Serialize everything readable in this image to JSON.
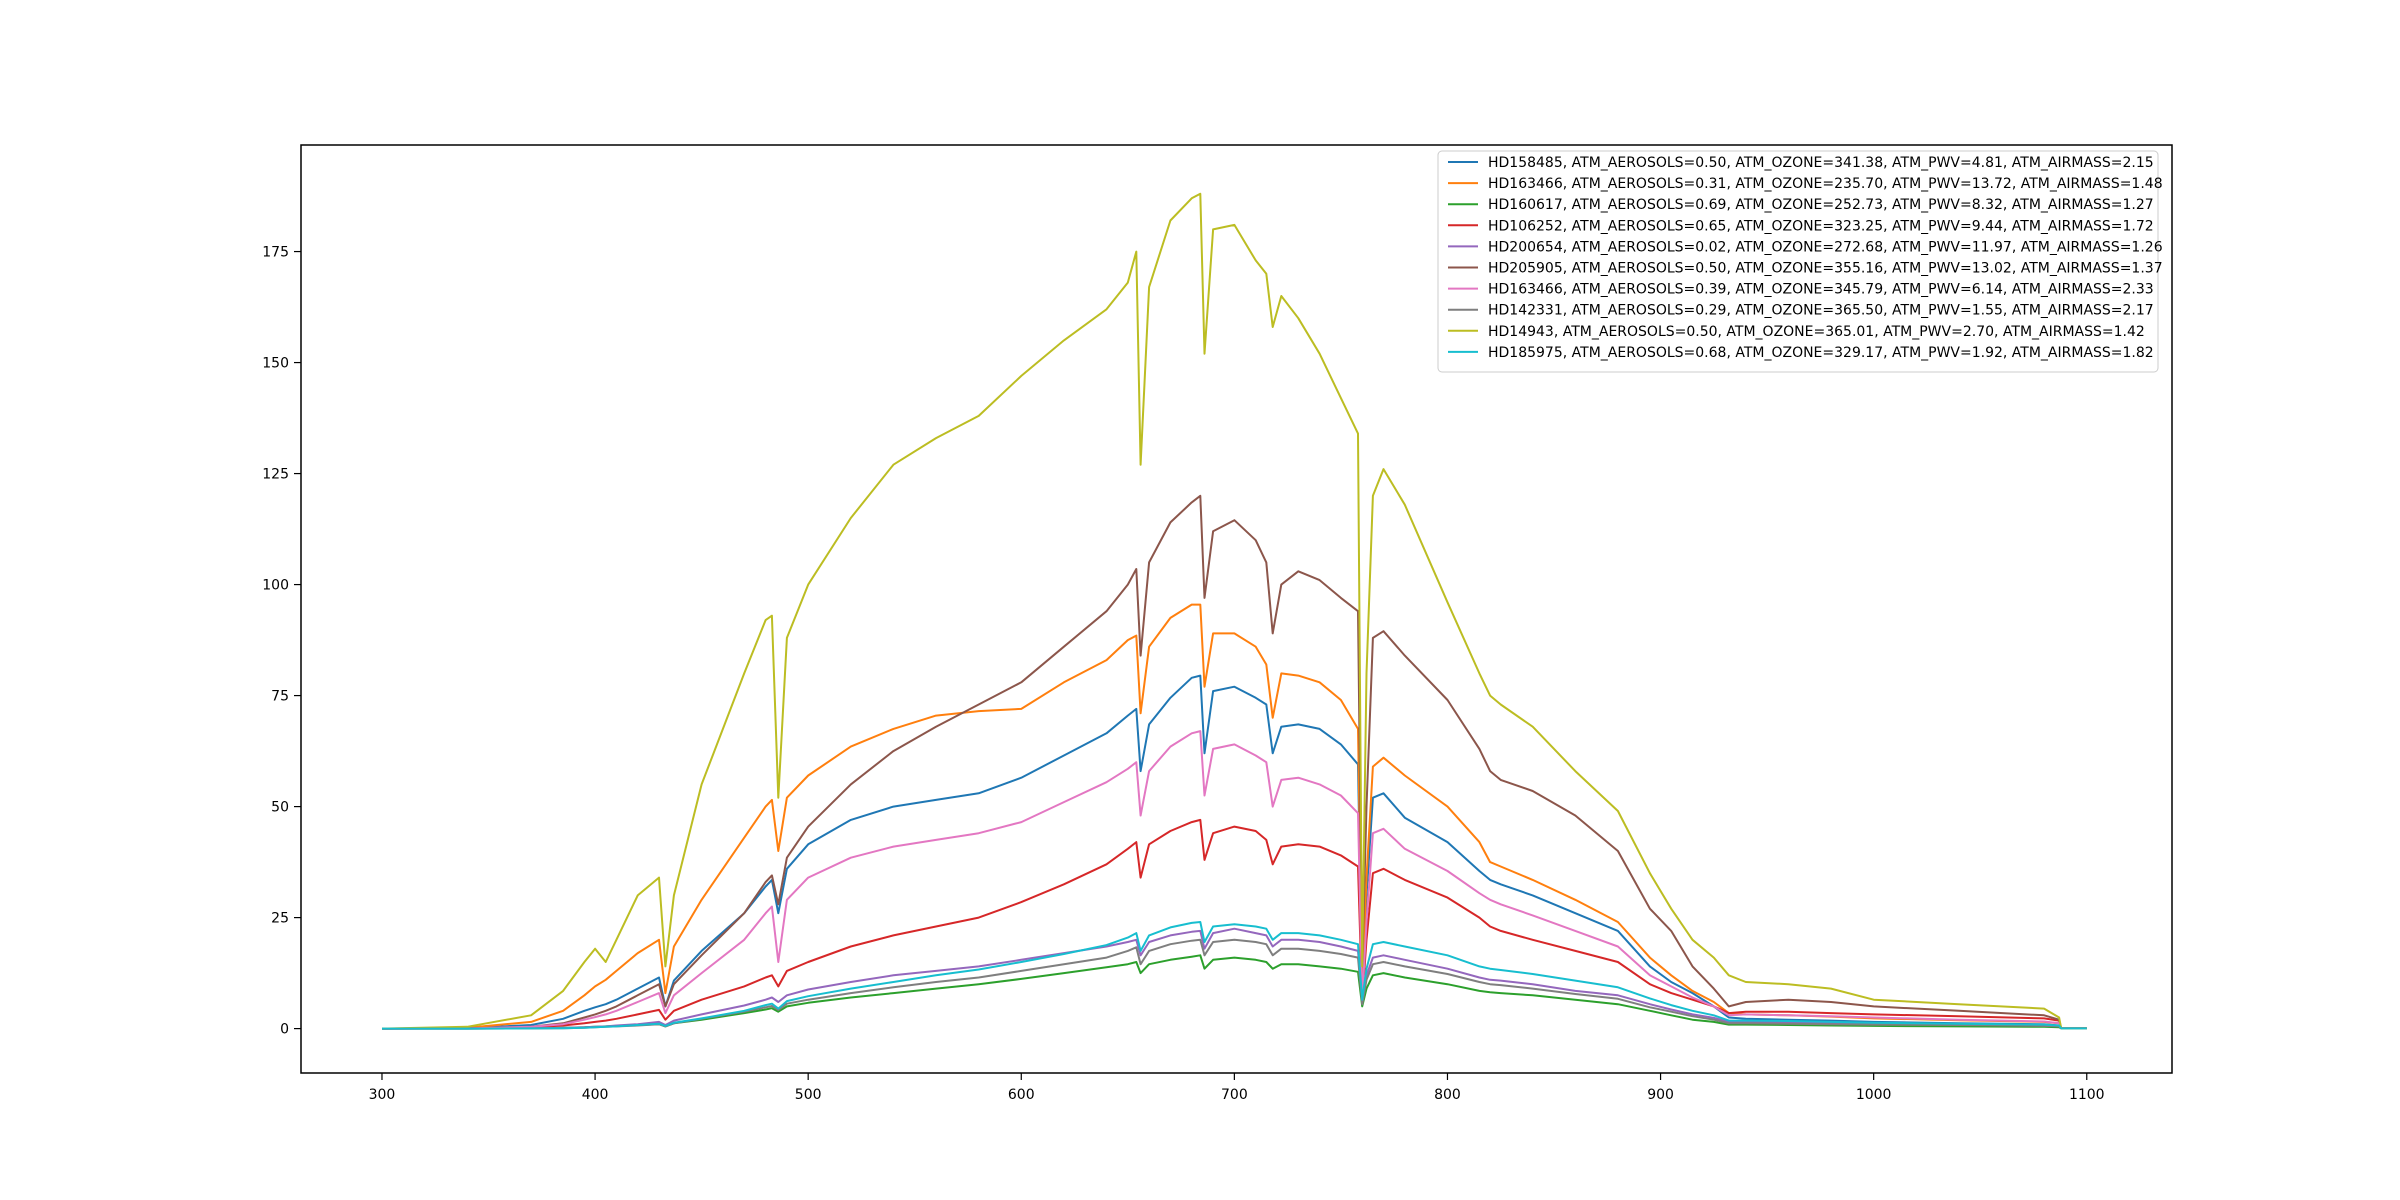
{
  "chart_data": {
    "type": "line",
    "title": "",
    "xlabel": "",
    "ylabel": "",
    "xlim": [
      262,
      1140
    ],
    "ylim": [
      -10,
      199
    ],
    "xticks": [
      300,
      400,
      500,
      600,
      700,
      800,
      900,
      1000,
      1100
    ],
    "yticks": [
      0,
      25,
      50,
      75,
      100,
      125,
      150,
      175
    ],
    "grid": false,
    "legend_position": "top-right",
    "x": [
      300,
      340,
      370,
      385,
      395,
      400,
      405,
      410,
      420,
      430,
      433,
      437,
      450,
      470,
      480,
      483,
      486,
      490,
      500,
      520,
      540,
      560,
      580,
      600,
      620,
      640,
      650,
      654,
      656,
      660,
      670,
      680,
      684,
      686,
      690,
      700,
      710,
      715,
      718,
      722,
      730,
      740,
      750,
      758,
      760,
      762,
      765,
      770,
      780,
      800,
      815,
      820,
      825,
      840,
      860,
      880,
      895,
      905,
      915,
      925,
      932,
      940,
      960,
      980,
      1000,
      1040,
      1080,
      1087,
      1088,
      1100
    ],
    "series": [
      {
        "name": "HD158485, ATM_AEROSOLS=0.50, ATM_OZONE=341.38, ATM_PWV=4.81, ATM_AIRMASS=2.15",
        "color": "#1f77b4",
        "values": [
          0,
          0.1,
          0.8,
          2.2,
          4.0,
          4.8,
          5.5,
          6.5,
          9.0,
          11.5,
          5.0,
          10.8,
          17.5,
          26.0,
          32.0,
          33.5,
          26.0,
          36.0,
          41.5,
          47.0,
          50.0,
          51.5,
          53.0,
          56.5,
          61.5,
          66.5,
          70.5,
          72.0,
          58.0,
          68.5,
          74.5,
          79.0,
          79.5,
          62.0,
          76.0,
          77.0,
          74.5,
          73.0,
          62.0,
          68.0,
          68.5,
          67.5,
          64.0,
          59.5,
          8.0,
          30.0,
          52.0,
          53.0,
          47.5,
          42.0,
          35.5,
          33.5,
          32.5,
          30.0,
          26.0,
          22.0,
          14.0,
          10.5,
          8.0,
          5.0,
          2.5,
          2.2,
          2.0,
          1.8,
          1.5,
          1.2,
          1.0,
          0.7,
          0.05,
          0.05
        ]
      },
      {
        "name": "HD163466, ATM_AEROSOLS=0.31, ATM_OZONE=235.70, ATM_PWV=13.72, ATM_AIRMASS=1.48",
        "color": "#ff7f0e",
        "values": [
          0,
          0.2,
          1.5,
          4.0,
          7.5,
          9.5,
          11.0,
          13.0,
          17.0,
          20.0,
          8.0,
          18.5,
          29.0,
          43.0,
          50.0,
          51.5,
          40.0,
          52.0,
          57.0,
          63.5,
          67.5,
          70.5,
          71.5,
          72.0,
          78.0,
          83.0,
          87.5,
          88.5,
          71.0,
          86.0,
          92.5,
          95.5,
          95.5,
          77.0,
          89.0,
          89.0,
          86.0,
          82.0,
          70.0,
          80.0,
          79.5,
          78.0,
          74.0,
          67.5,
          10.0,
          34.0,
          59.0,
          61.0,
          57.0,
          50.0,
          42.0,
          37.5,
          36.5,
          33.5,
          29.0,
          24.0,
          16.0,
          12.0,
          8.5,
          6.0,
          3.5,
          3.2,
          3.0,
          2.7,
          2.3,
          1.9,
          1.5,
          1.2,
          0.05,
          0.05
        ]
      },
      {
        "name": "HD160617, ATM_AEROSOLS=0.69, ATM_OZONE=252.73, ATM_PWV=8.32, ATM_AIRMASS=1.27",
        "color": "#2ca02c",
        "values": [
          0,
          0,
          0.1,
          0.2,
          0.3,
          0.4,
          0.5,
          0.6,
          0.8,
          1.0,
          0.5,
          1.2,
          2.0,
          3.5,
          4.3,
          4.6,
          3.8,
          5.0,
          5.8,
          7.0,
          8.0,
          9.0,
          10.0,
          11.2,
          12.5,
          13.8,
          14.5,
          15.0,
          12.5,
          14.5,
          15.5,
          16.2,
          16.5,
          13.5,
          15.5,
          16.0,
          15.5,
          15.0,
          13.5,
          14.5,
          14.5,
          14.0,
          13.5,
          12.8,
          5.0,
          9.0,
          12.0,
          12.5,
          11.5,
          10.0,
          8.5,
          8.2,
          8.0,
          7.5,
          6.5,
          5.5,
          4.0,
          3.0,
          2.0,
          1.5,
          0.9,
          0.9,
          0.8,
          0.7,
          0.6,
          0.5,
          0.4,
          0.3,
          0.05,
          0.05
        ]
      },
      {
        "name": "HD106252, ATM_AEROSOLS=0.65, ATM_OZONE=323.25, ATM_PWV=9.44, ATM_AIRMASS=1.72",
        "color": "#d62728",
        "values": [
          0,
          0.05,
          0.3,
          0.7,
          1.2,
          1.5,
          1.8,
          2.2,
          3.2,
          4.2,
          2.0,
          4.0,
          6.5,
          9.5,
          11.5,
          12.0,
          9.5,
          13.0,
          15.0,
          18.5,
          21.0,
          23.0,
          25.0,
          28.5,
          32.5,
          37.0,
          40.5,
          42.0,
          34.0,
          41.5,
          44.5,
          46.5,
          47.0,
          38.0,
          44.0,
          45.5,
          44.5,
          42.5,
          37.0,
          41.0,
          41.5,
          41.0,
          39.0,
          36.5,
          6.0,
          20.0,
          35.0,
          36.0,
          33.5,
          29.5,
          25.0,
          23.0,
          22.0,
          20.0,
          17.5,
          15.0,
          10.0,
          8.0,
          6.5,
          5.0,
          3.5,
          3.8,
          3.8,
          3.5,
          3.2,
          2.8,
          2.3,
          1.8,
          0.05,
          0.05
        ]
      },
      {
        "name": "HD200654, ATM_AEROSOLS=0.02, ATM_OZONE=272.68, ATM_PWV=11.97, ATM_AIRMASS=1.26",
        "color": "#9467bd",
        "values": [
          0,
          0,
          0.05,
          0.15,
          0.3,
          0.4,
          0.5,
          0.7,
          1.0,
          1.5,
          0.8,
          1.8,
          3.2,
          5.2,
          6.5,
          7.0,
          6.0,
          7.5,
          8.8,
          10.5,
          12.0,
          13.0,
          14.0,
          15.5,
          17.0,
          18.5,
          19.5,
          20.0,
          16.5,
          19.5,
          21.0,
          21.8,
          22.0,
          18.0,
          21.5,
          22.5,
          21.5,
          21.0,
          18.5,
          20.0,
          20.0,
          19.5,
          18.5,
          17.5,
          6.0,
          12.0,
          16.0,
          16.5,
          15.5,
          13.5,
          11.5,
          11.0,
          10.8,
          10.0,
          8.5,
          7.5,
          5.5,
          4.3,
          3.2,
          2.4,
          1.5,
          1.5,
          1.4,
          1.3,
          1.2,
          1.0,
          0.8,
          0.6,
          0.05,
          0.05
        ]
      },
      {
        "name": "HD205905, ATM_AEROSOLS=0.50, ATM_OZONE=355.16, ATM_PWV=13.02, ATM_AIRMASS=1.37",
        "color": "#8c564b",
        "values": [
          0,
          0.05,
          0.4,
          1.2,
          2.5,
          3.2,
          4.0,
          5.0,
          7.5,
          10.0,
          5.0,
          10.0,
          16.5,
          26.0,
          33.0,
          34.5,
          28.0,
          38.5,
          45.5,
          55.0,
          62.5,
          68.0,
          73.0,
          78.0,
          86.0,
          94.0,
          100.0,
          103.5,
          84.0,
          105.0,
          114.0,
          118.5,
          120.0,
          97.0,
          112.0,
          114.5,
          110.0,
          105.0,
          89.0,
          100.0,
          103.0,
          101.0,
          97.0,
          94.0,
          14.0,
          50.0,
          88.0,
          89.5,
          84.0,
          74.0,
          63.0,
          58.0,
          56.0,
          53.5,
          48.0,
          40.0,
          27.0,
          22.0,
          14.0,
          9.0,
          5.0,
          6.0,
          6.5,
          6.0,
          5.0,
          4.0,
          3.0,
          2.0,
          0.05,
          0.05
        ]
      },
      {
        "name": "HD163466, ATM_AEROSOLS=0.39, ATM_OZONE=345.79, ATM_PWV=6.14, ATM_AIRMASS=2.33",
        "color": "#e377c2",
        "values": [
          0,
          0.05,
          0.4,
          1.0,
          2.0,
          2.6,
          3.2,
          4.0,
          6.0,
          8.0,
          3.5,
          7.5,
          12.5,
          20.0,
          26.0,
          27.5,
          15.0,
          29.0,
          34.0,
          38.5,
          41.0,
          42.5,
          44.0,
          46.5,
          51.0,
          55.5,
          58.5,
          60.0,
          48.0,
          58.0,
          63.5,
          66.5,
          67.0,
          52.5,
          63.0,
          64.0,
          61.5,
          60.0,
          50.0,
          56.0,
          56.5,
          55.0,
          52.5,
          48.5,
          6.5,
          24.0,
          44.0,
          45.0,
          40.5,
          35.5,
          30.5,
          29.0,
          28.0,
          25.5,
          22.0,
          18.5,
          12.0,
          9.5,
          7.0,
          5.0,
          3.0,
          3.2,
          3.0,
          2.8,
          2.5,
          2.0,
          1.6,
          1.2,
          0.05,
          0.05
        ]
      },
      {
        "name": "HD142331, ATM_AEROSOLS=0.29, ATM_OZONE=365.50, ATM_PWV=1.55, ATM_AIRMASS=2.17",
        "color": "#7f7f7f",
        "values": [
          0,
          0,
          0.05,
          0.1,
          0.2,
          0.3,
          0.4,
          0.5,
          0.7,
          1.0,
          0.5,
          1.2,
          2.2,
          3.8,
          4.8,
          5.1,
          4.2,
          5.6,
          6.5,
          8.0,
          9.3,
          10.5,
          11.5,
          13.0,
          14.5,
          16.0,
          17.5,
          18.3,
          14.5,
          17.5,
          19.0,
          19.8,
          20.0,
          16.5,
          19.5,
          20.0,
          19.5,
          19.0,
          16.5,
          18.0,
          18.0,
          17.5,
          16.8,
          16.0,
          5.5,
          11.0,
          14.5,
          15.0,
          14.0,
          12.3,
          10.5,
          10.0,
          9.8,
          9.0,
          7.8,
          6.7,
          4.8,
          3.8,
          2.8,
          2.0,
          1.2,
          1.2,
          1.1,
          1.0,
          0.9,
          0.8,
          0.6,
          0.5,
          0.05,
          0.05
        ]
      },
      {
        "name": "HD14943, ATM_AEROSOLS=0.50, ATM_OZONE=365.01, ATM_PWV=2.70, ATM_AIRMASS=1.42",
        "color": "#bcbd22",
        "values": [
          0,
          0.4,
          3.0,
          8.5,
          15.0,
          18.0,
          15.0,
          20.0,
          30.0,
          34.0,
          14.0,
          30.0,
          55.0,
          80.0,
          92.0,
          93.0,
          52.0,
          88.0,
          100.0,
          115.0,
          127.0,
          133.0,
          138.0,
          147.0,
          155.0,
          162.0,
          168.0,
          175.0,
          127.0,
          167.0,
          182.0,
          187.0,
          188.0,
          152.0,
          180.0,
          181.0,
          173.0,
          170.0,
          158.0,
          165.0,
          160.0,
          152.0,
          142.0,
          134.0,
          14.0,
          80.0,
          120.0,
          126.0,
          118.0,
          96.0,
          80.0,
          75.0,
          73.0,
          68.0,
          58.0,
          49.0,
          35.0,
          27.0,
          20.0,
          16.0,
          12.0,
          10.5,
          10.0,
          9.0,
          6.5,
          5.5,
          4.5,
          2.5,
          0.05,
          0.05
        ]
      },
      {
        "name": "HD185975, ATM_AEROSOLS=0.68, ATM_OZONE=329.17, ATM_PWV=1.92, ATM_AIRMASS=1.82",
        "color": "#17becf",
        "values": [
          0,
          0,
          0.05,
          0.1,
          0.2,
          0.3,
          0.4,
          0.5,
          0.8,
          1.1,
          0.6,
          1.3,
          2.3,
          4.0,
          5.3,
          5.6,
          4.5,
          6.2,
          7.3,
          9.0,
          10.5,
          12.0,
          13.3,
          15.0,
          16.8,
          18.8,
          20.5,
          21.5,
          17.5,
          21.0,
          22.8,
          23.8,
          24.0,
          19.5,
          23.0,
          23.5,
          23.0,
          22.5,
          20.0,
          21.5,
          21.5,
          21.0,
          20.0,
          19.0,
          6.5,
          13.5,
          19.0,
          19.5,
          18.5,
          16.5,
          14.0,
          13.5,
          13.2,
          12.3,
          10.8,
          9.3,
          6.8,
          5.3,
          4.0,
          3.0,
          1.8,
          1.8,
          1.7,
          1.5,
          1.3,
          1.1,
          0.9,
          0.7,
          0.05,
          0.05
        ]
      }
    ]
  }
}
